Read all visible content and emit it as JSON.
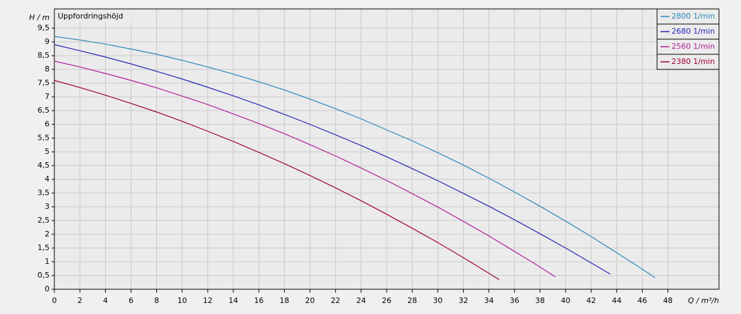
{
  "chart_data": {
    "type": "line",
    "title": "Uppfordringshöjd",
    "x_label": "Q / m³/h",
    "y_label": "H / m",
    "xlim": [
      0,
      52
    ],
    "ylim": [
      0,
      10.2
    ],
    "xticks": [
      0,
      2,
      4,
      6,
      8,
      10,
      12,
      14,
      16,
      18,
      20,
      22,
      24,
      26,
      28,
      30,
      32,
      34,
      36,
      38,
      40,
      42,
      44,
      46,
      48
    ],
    "yticks": [
      0,
      {
        "value": 0.5,
        "label": "0,5"
      },
      1,
      {
        "value": 1.5,
        "label": "1,5"
      },
      2,
      {
        "value": 2.5,
        "label": "2,5"
      },
      3,
      {
        "value": 3.5,
        "label": "3,5"
      },
      4,
      {
        "value": 4.5,
        "label": "4,5"
      },
      5,
      {
        "value": 5.5,
        "label": "5,5"
      },
      6,
      {
        "value": 6.5,
        "label": "6,5"
      },
      7,
      {
        "value": 7.5,
        "label": "7,5"
      },
      8,
      {
        "value": 8.5,
        "label": "8,5"
      },
      9,
      {
        "value": 9.5,
        "label": "9,5"
      }
    ],
    "grid": true,
    "legend": "top-right",
    "series": [
      {
        "name": "2800 1/min",
        "color": "#2a88b8",
        "x": [
          0,
          2,
          4,
          6,
          8,
          10,
          12,
          14,
          16,
          18,
          20,
          22,
          24,
          26,
          28,
          30,
          32,
          34,
          36,
          38,
          40,
          42,
          44,
          46,
          47
        ],
        "values": [
          9.2,
          9.07,
          8.92,
          8.74,
          8.55,
          8.33,
          8.09,
          7.83,
          7.55,
          7.25,
          6.92,
          6.57,
          6.2,
          5.8,
          5.4,
          4.97,
          4.52,
          4.04,
          3.54,
          3.02,
          2.48,
          1.92,
          1.33,
          0.73,
          0.42
        ]
      },
      {
        "name": "2680 1/min",
        "color": "#2424b4",
        "x": [
          0,
          2,
          4,
          6,
          8,
          10,
          12,
          14,
          16,
          18,
          20,
          22,
          24,
          26,
          28,
          30,
          32,
          34,
          36,
          38,
          40,
          42,
          43.5
        ],
        "values": [
          8.9,
          8.68,
          8.45,
          8.2,
          7.93,
          7.65,
          7.35,
          7.04,
          6.71,
          6.36,
          6.0,
          5.62,
          5.23,
          4.82,
          4.39,
          3.95,
          3.49,
          3.02,
          2.53,
          2.02,
          1.5,
          0.96,
          0.55
        ]
      },
      {
        "name": "2560 1/min",
        "color": "#b0209a",
        "x": [
          0,
          2,
          4,
          6,
          8,
          10,
          12,
          14,
          16,
          18,
          20,
          22,
          24,
          26,
          28,
          30,
          32,
          34,
          36,
          38,
          39.2
        ],
        "values": [
          8.3,
          8.09,
          7.85,
          7.6,
          7.33,
          7.03,
          6.72,
          6.38,
          6.03,
          5.66,
          5.26,
          4.85,
          4.41,
          3.96,
          3.48,
          2.99,
          2.47,
          1.94,
          1.38,
          0.81,
          0.45
        ]
      },
      {
        "name": "2380 1/min",
        "color": "#a00032",
        "x": [
          0,
          2,
          4,
          6,
          8,
          10,
          12,
          14,
          16,
          18,
          20,
          22,
          24,
          26,
          28,
          30,
          32,
          34,
          34.8
        ],
        "values": [
          7.6,
          7.34,
          7.06,
          6.76,
          6.45,
          6.11,
          5.75,
          5.38,
          4.98,
          4.57,
          4.14,
          3.69,
          3.22,
          2.73,
          2.22,
          1.7,
          1.15,
          0.58,
          0.35
        ]
      }
    ]
  }
}
